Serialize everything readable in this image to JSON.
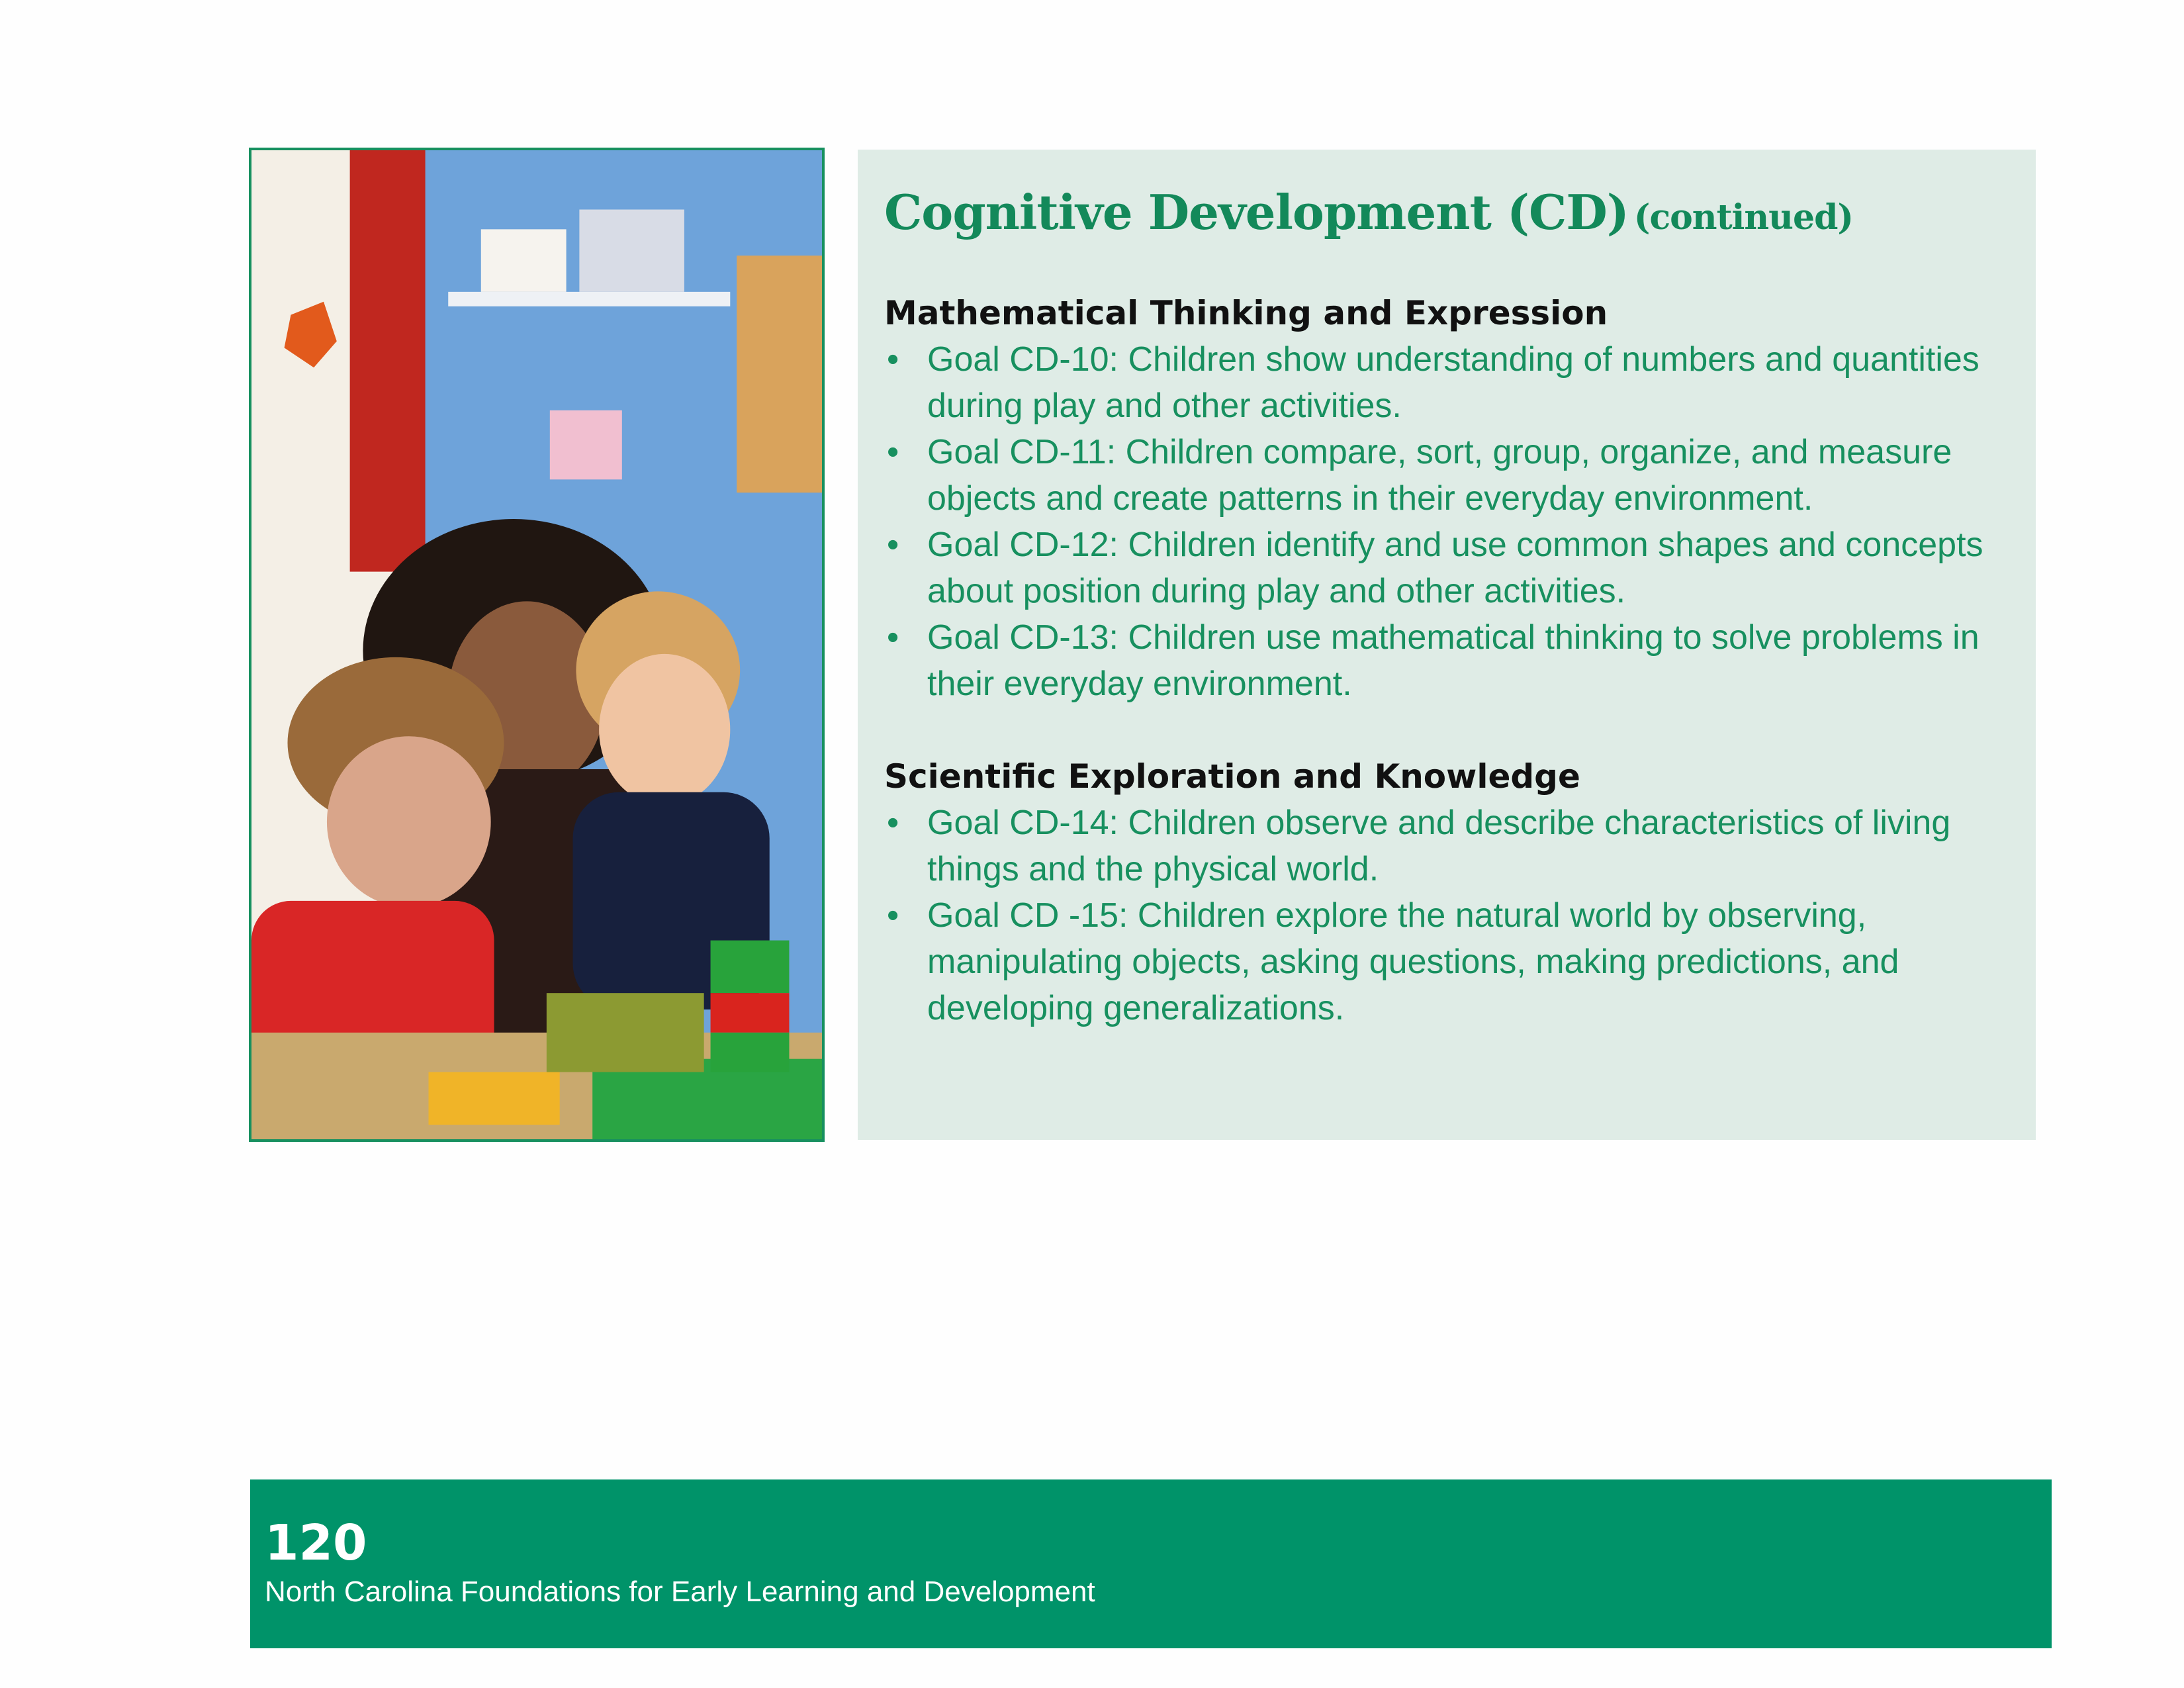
{
  "panel": {
    "title": "Cognitive Development (CD)",
    "title_suffix": "(continued)"
  },
  "sections": [
    {
      "heading": "Mathematical Thinking and Expression",
      "goals": [
        "Goal CD-10: Children show understanding of numbers and quantities during play and other activities.",
        "Goal CD-11: Children compare, sort, group, organize, and measure objects and create patterns in their everyday environment.",
        "Goal CD-12: Children identify and use common shapes and concepts about position during play and other activities.",
        "Goal CD-13: Children use mathematical thinking to solve problems in their everyday environment."
      ]
    },
    {
      "heading": "Scientific Exploration and Knowledge",
      "goals": [
        "Goal CD-14: Children observe and describe characteristics of living things and the physical world.",
        "Goal CD -15: Children explore the natural world by observing, manipulating objects, asking questions, making predictions, and developing generalizations."
      ]
    }
  ],
  "bullet": "•",
  "footer": {
    "page_number": "120",
    "publication_title": "North Carolina Foundations for Early Learning and Development"
  },
  "colors": {
    "accent_green": "#17905f",
    "panel_background": "#dfece6",
    "footer_green": "#009369",
    "heading_text": "#111111"
  },
  "photo": {
    "subject": "teacher and two children building with toy blocks"
  }
}
